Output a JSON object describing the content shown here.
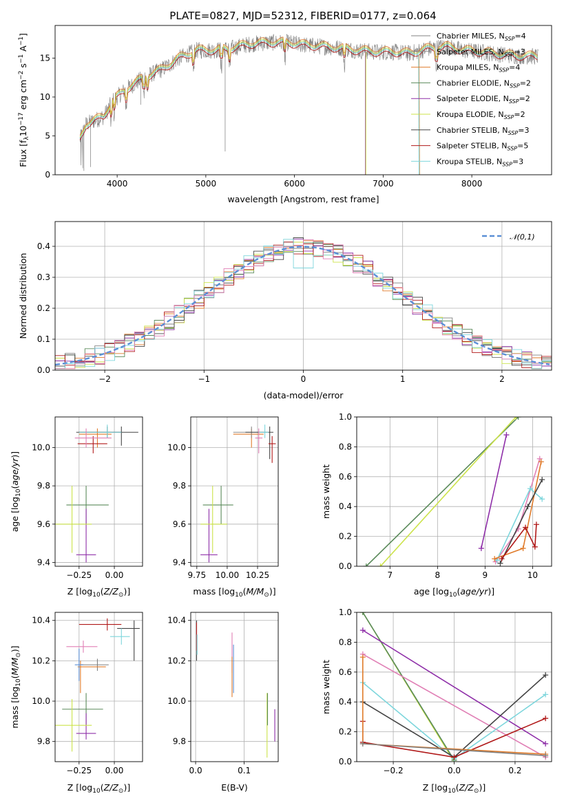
{
  "title": "PLATE=0827, MJD=52312, FIBERID=0177, z=0.064",
  "colors": {
    "Chabrier MILES": "#808080",
    "Salpeter MILES": "#8c8c8c",
    "Kroupa MILES": "#e07b2a",
    "Chabrier ELODIE": "#5a8a5a",
    "Salpeter ELODIE": "#8e2ea8",
    "Kroupa ELODIE": "#cce34a",
    "Chabrier STELIB": "#444444",
    "Salpeter STELIB": "#b01818",
    "Kroupa STELIB": "#7dd6dc",
    "Pink": "#e07fb5",
    "Normal": "#5b8fd6"
  },
  "chart_data": [
    {
      "id": "spectrum",
      "type": "line",
      "xlabel": "wavelength [Angstrom, rest frame]",
      "ylabel": "Flux [f_λ 10^-17 erg cm^-2 s^-1 A^-1]",
      "xlim": [
        3300,
        8900
      ],
      "ylim": [
        0,
        19.2
      ],
      "xticks": [
        4000,
        5000,
        6000,
        7000,
        8000
      ],
      "yticks": [
        0,
        5,
        10,
        15
      ],
      "grid": false,
      "legend_position": "top-right",
      "legend": [
        {
          "name": "Chabrier MILES",
          "nssp": "4"
        },
        {
          "name": "Salpeter MILES",
          "nssp": "3"
        },
        {
          "name": "Kroupa MILES",
          "nssp": "4"
        },
        {
          "name": "Chabrier ELODIE",
          "nssp": "2"
        },
        {
          "name": "Salpeter ELODIE",
          "nssp": "2"
        },
        {
          "name": "Kroupa ELODIE",
          "nssp": "2"
        },
        {
          "name": "Chabrier STELIB",
          "nssp": "3"
        },
        {
          "name": "Salpeter STELIB",
          "nssp": "5"
        },
        {
          "name": "Kroupa STELIB",
          "nssp": "3"
        }
      ],
      "continuum": [
        [
          3580,
          4.5
        ],
        [
          3650,
          6.5
        ],
        [
          3750,
          7
        ],
        [
          3850,
          7.5
        ],
        [
          3950,
          9.5
        ],
        [
          4100,
          11
        ],
        [
          4300,
          12.5
        ],
        [
          4500,
          13.5
        ],
        [
          4700,
          15
        ],
        [
          4900,
          16
        ],
        [
          5100,
          16
        ],
        [
          5300,
          16.3
        ],
        [
          5500,
          16.8
        ],
        [
          5700,
          17
        ],
        [
          5900,
          17
        ],
        [
          6100,
          16.7
        ],
        [
          6300,
          16.5
        ],
        [
          6500,
          16.3
        ],
        [
          6700,
          16
        ],
        [
          6900,
          15.8
        ],
        [
          7100,
          15.8
        ],
        [
          7300,
          15.6
        ],
        [
          7500,
          16.2
        ],
        [
          7700,
          16.5
        ],
        [
          7900,
          16
        ],
        [
          8100,
          15.8
        ],
        [
          8300,
          15.5
        ],
        [
          8500,
          15.3
        ],
        [
          8750,
          15.2
        ]
      ],
      "model_segments": [
        {
          "series": "Salpeter ELODIE",
          "x": [
            6800,
            6800
          ],
          "y": [
            15.8,
            0
          ]
        },
        {
          "series": "Kroupa ELODIE",
          "x": [
            6805,
            6805
          ],
          "y": [
            15.8,
            0
          ]
        },
        {
          "series": "Kroupa MILES",
          "x": [
            7405,
            7410
          ],
          "y": [
            15.5,
            0
          ]
        },
        {
          "series": "Kroupa STELIB",
          "x": [
            7400,
            7405
          ],
          "y": [
            15.5,
            0
          ]
        }
      ]
    },
    {
      "id": "residuals",
      "type": "histogram",
      "xlabel": "(data-model)/error",
      "ylabel": "Normed distribution",
      "xlim": [
        -2.5,
        2.5
      ],
      "ylim": [
        0,
        0.48
      ],
      "xticks": [
        -2,
        -1,
        0,
        1,
        2
      ],
      "yticks": [
        0.0,
        0.1,
        0.2,
        0.3,
        0.4
      ],
      "grid": true,
      "legend_position": "top-right",
      "reference": {
        "name": "𝒩(0,1)",
        "mean": 0,
        "sigma": 1
      }
    },
    {
      "id": "age-vs-Z",
      "type": "errorbar",
      "xlabel": "Z [log10(Z/Z☉)]",
      "ylabel": "age [log10(age/yr)]",
      "xlim": [
        -0.42,
        0.2
      ],
      "ylim": [
        9.38,
        10.16
      ],
      "xticks": [
        -0.25,
        0.0
      ],
      "yticks": [
        9.4,
        9.6,
        9.8,
        10.0
      ],
      "grid": true,
      "points": [
        {
          "series": "Chabrier MILES",
          "x": -0.05,
          "xerr": [
            0.2,
            0.1
          ],
          "y": 10.08,
          "yerr": [
            0.03,
            0.03
          ]
        },
        {
          "series": "Salpeter MILES",
          "x": -0.05,
          "xerr": [
            0.2,
            0.1
          ],
          "y": 10.08,
          "yerr": [
            0.03,
            0.03
          ]
        },
        {
          "series": "Kroupa MILES",
          "x": -0.12,
          "xerr": [
            0.13,
            0.1
          ],
          "y": 10.07,
          "yerr": [
            0.07,
            0.03
          ]
        },
        {
          "series": "Chabrier ELODIE",
          "x": -0.2,
          "xerr": [
            0.14,
            0.16
          ],
          "y": 9.7,
          "yerr": [
            0.1,
            0.1
          ]
        },
        {
          "series": "Salpeter ELODIE",
          "x": -0.2,
          "xerr": [
            0.07,
            0.07
          ],
          "y": 9.44,
          "yerr": [
            0.04,
            0.24
          ]
        },
        {
          "series": "Kroupa ELODIE",
          "x": -0.3,
          "xerr": [
            0.12,
            0.14
          ],
          "y": 9.6,
          "yerr": [
            0.15,
            0.2
          ]
        },
        {
          "series": "Chabrier STELIB",
          "x": 0.05,
          "xerr": [
            0.32,
            0.12
          ],
          "y": 10.08,
          "yerr": [
            0.07,
            0.03
          ]
        },
        {
          "series": "Salpeter STELIB",
          "x": -0.15,
          "xerr": [
            0.11,
            0.1
          ],
          "y": 10.02,
          "yerr": [
            0.05,
            0.04
          ]
        },
        {
          "series": "Kroupa STELIB",
          "x": -0.05,
          "xerr": [
            0.2,
            0.1
          ],
          "y": 10.08,
          "yerr": [
            0.03,
            0.04
          ]
        },
        {
          "series": "Pink",
          "x": -0.2,
          "xerr": [
            0.08,
            0.18
          ],
          "y": 10.05,
          "yerr": [
            0.05,
            0.05
          ]
        }
      ]
    },
    {
      "id": "age-vs-mass",
      "type": "errorbar",
      "xlabel": "mass [log10(M/M☉)]",
      "ylabel": "",
      "xlim": [
        9.7,
        10.42
      ],
      "ylim": [
        9.38,
        10.16
      ],
      "xticks": [
        9.75,
        10.0,
        10.25
      ],
      "yticks": [
        9.4,
        9.6,
        9.8,
        10.0
      ],
      "grid": true,
      "points": [
        {
          "series": "Kroupa MILES",
          "x": 10.2,
          "xerr": [
            0.15,
            0.1
          ],
          "y": 10.07,
          "yerr": [
            0.07,
            0.03
          ]
        },
        {
          "series": "Salpeter MILES",
          "x": 10.2,
          "xerr": [
            0.15,
            0.12
          ],
          "y": 10.08,
          "yerr": [
            0.03,
            0.03
          ]
        },
        {
          "series": "Chabrier ELODIE",
          "x": 9.95,
          "xerr": [
            0.15,
            0.1
          ],
          "y": 9.7,
          "yerr": [
            0.1,
            0.1
          ]
        },
        {
          "series": "Salpeter ELODIE",
          "x": 9.85,
          "xerr": [
            0.07,
            0.07
          ],
          "y": 9.44,
          "yerr": [
            0.04,
            0.24
          ]
        },
        {
          "series": "Kroupa ELODIE",
          "x": 9.88,
          "xerr": [
            0.1,
            0.12
          ],
          "y": 9.6,
          "yerr": [
            0.15,
            0.2
          ]
        },
        {
          "series": "Chabrier STELIB",
          "x": 10.35,
          "xerr": [
            0.2,
            0.03
          ],
          "y": 10.08,
          "yerr": [
            0.14,
            0.03
          ]
        },
        {
          "series": "Salpeter STELIB",
          "x": 10.37,
          "xerr": [
            0.03,
            0.03
          ],
          "y": 10.02,
          "yerr": [
            0.1,
            0.04
          ]
        },
        {
          "series": "Kroupa STELIB",
          "x": 10.31,
          "xerr": [
            0.05,
            0.03
          ],
          "y": 10.08,
          "yerr": [
            0.03,
            0.04
          ]
        },
        {
          "series": "Pink",
          "x": 10.26,
          "xerr": [
            0.03,
            0.03
          ],
          "y": 10.05,
          "yerr": [
            0.08,
            0.05
          ]
        }
      ]
    },
    {
      "id": "weight-vs-age",
      "type": "line",
      "xlabel": "age [log10(age/yr)]",
      "ylabel": "mass weight",
      "xlim": [
        6.3,
        10.4
      ],
      "ylim": [
        0,
        1.0
      ],
      "xticks": [
        7,
        8,
        9,
        10
      ],
      "yticks": [
        0.0,
        0.2,
        0.4,
        0.6,
        0.8,
        1.0
      ],
      "grid": true,
      "series": [
        {
          "name": "Chabrier ELODIE",
          "x": [
            6.5,
            9.7
          ],
          "y": [
            0.0,
            1.0
          ]
        },
        {
          "name": "Kroupa ELODIE",
          "x": [
            6.8,
            9.65
          ],
          "y": [
            0.0,
            1.0
          ]
        },
        {
          "name": "Salpeter ELODIE",
          "x": [
            8.92,
            9.45
          ],
          "y": [
            0.12,
            0.88
          ]
        },
        {
          "name": "Pink",
          "x": [
            9.22,
            9.7,
            10.15
          ],
          "y": [
            0.03,
            0.25,
            0.72
          ]
        },
        {
          "name": "Kroupa STELIB",
          "x": [
            9.25,
            9.95,
            10.2
          ],
          "y": [
            0.04,
            0.52,
            0.45
          ]
        },
        {
          "name": "Kroupa MILES",
          "x": [
            9.2,
            9.8,
            10.18
          ],
          "y": [
            0.05,
            0.12,
            0.7
          ]
        },
        {
          "name": "Chabrier STELIB",
          "x": [
            9.32,
            9.9,
            10.2
          ],
          "y": [
            0.02,
            0.4,
            0.58
          ]
        },
        {
          "name": "Salpeter STELIB",
          "x": [
            9.35,
            9.85,
            10.05,
            10.08
          ],
          "y": [
            0.05,
            0.26,
            0.13,
            0.28
          ]
        }
      ]
    },
    {
      "id": "mass-vs-Z",
      "type": "errorbar",
      "xlabel": "Z [log10(Z/Z☉)]",
      "ylabel": "mass [log10(M/M☉)]",
      "xlim": [
        -0.42,
        0.2
      ],
      "ylim": [
        9.7,
        10.44
      ],
      "xticks": [
        -0.25,
        0.0
      ],
      "yticks": [
        9.8,
        10.0,
        10.2,
        10.4
      ],
      "grid": true,
      "points": [
        {
          "series": "Chabrier MILES",
          "x": -0.12,
          "xerr": [
            0.12,
            0.08
          ],
          "y": 10.18,
          "yerr": [
            0.03,
            0.03
          ]
        },
        {
          "series": "Kroupa MILES",
          "x": -0.24,
          "xerr": [
            0.02,
            0.18
          ],
          "y": 10.17,
          "yerr": [
            0.13,
            0.03
          ]
        },
        {
          "series": "Chabrier ELODIE",
          "x": -0.2,
          "xerr": [
            0.17,
            0.12
          ],
          "y": 9.96,
          "yerr": [
            0.08,
            0.08
          ]
        },
        {
          "series": "Salpeter ELODIE",
          "x": -0.2,
          "xerr": [
            0.07,
            0.07
          ],
          "y": 9.84,
          "yerr": [
            0.03,
            0.1
          ]
        },
        {
          "series": "Kroupa ELODIE",
          "x": -0.3,
          "xerr": [
            0.12,
            0.14
          ],
          "y": 9.88,
          "yerr": [
            0.13,
            0.13
          ]
        },
        {
          "series": "Chabrier STELIB",
          "x": 0.14,
          "xerr": [
            0.12,
            0.04
          ],
          "y": 10.36,
          "yerr": [
            0.16,
            0.04
          ]
        },
        {
          "series": "Salpeter STELIB",
          "x": -0.05,
          "xerr": [
            0.2,
            0.1
          ],
          "y": 10.38,
          "yerr": [
            0.03,
            0.03
          ]
        },
        {
          "series": "Kroupa STELIB",
          "x": 0.05,
          "xerr": [
            0.08,
            0.06
          ],
          "y": 10.32,
          "yerr": [
            0.04,
            0.04
          ]
        },
        {
          "series": "Pink",
          "x": -0.22,
          "xerr": [
            0.12,
            0.1
          ],
          "y": 10.27,
          "yerr": [
            0.03,
            0.03
          ]
        },
        {
          "series": "Normal",
          "x": -0.25,
          "xerr": [
            0.03,
            0.03
          ],
          "y": 10.18,
          "yerr": [
            0.08,
            0.08
          ]
        }
      ]
    },
    {
      "id": "mass-vs-ebv",
      "type": "errorbar",
      "xlabel": "E(B-V)",
      "ylabel": "",
      "xlim": [
        -0.01,
        0.17
      ],
      "ylim": [
        9.7,
        10.44
      ],
      "xticks": [
        0.0,
        0.1
      ],
      "yticks": [
        9.8,
        10.0,
        10.2,
        10.4
      ],
      "grid": true,
      "points": [
        {
          "series": "Chabrier STELIB",
          "x": 0.002,
          "xerr": [
            0.0,
            0.0
          ],
          "y": 10.3,
          "yerr": [
            0.1,
            0.1
          ]
        },
        {
          "series": "Salpeter STELIB",
          "x": 0.002,
          "xerr": [
            0.0,
            0.0
          ],
          "y": 10.32,
          "yerr": [
            0.07,
            0.07
          ]
        },
        {
          "series": "Kroupa STELIB",
          "x": 0.003,
          "xerr": [
            0.0,
            0.0
          ],
          "y": 10.28,
          "yerr": [
            0.05,
            0.05
          ]
        },
        {
          "series": "Pink",
          "x": 0.075,
          "xerr": [
            0.0,
            0.0
          ],
          "y": 10.24,
          "yerr": [
            0.1,
            0.1
          ]
        },
        {
          "series": "Normal",
          "x": 0.078,
          "xerr": [
            0.0,
            0.0
          ],
          "y": 10.16,
          "yerr": [
            0.12,
            0.12
          ]
        },
        {
          "series": "Kroupa MILES",
          "x": 0.075,
          "xerr": [
            0.0,
            0.0
          ],
          "y": 10.12,
          "yerr": [
            0.1,
            0.1
          ]
        },
        {
          "series": "Kroupa ELODIE",
          "x": 0.147,
          "xerr": [
            0.0,
            0.0
          ],
          "y": 9.88,
          "yerr": [
            0.16,
            0.16
          ]
        },
        {
          "series": "Chabrier ELODIE",
          "x": 0.148,
          "xerr": [
            0.0,
            0.0
          ],
          "y": 9.96,
          "yerr": [
            0.08,
            0.08
          ]
        },
        {
          "series": "Salpeter ELODIE",
          "x": 0.163,
          "xerr": [
            0.0,
            0.0
          ],
          "y": 9.88,
          "yerr": [
            0.08,
            0.08
          ]
        }
      ]
    },
    {
      "id": "weight-vs-Z",
      "type": "line",
      "xlabel": "Z [log10(Z/Z☉)]",
      "ylabel": "mass weight",
      "xlim": [
        -0.32,
        0.32
      ],
      "ylim": [
        0,
        1.0
      ],
      "xticks": [
        -0.2,
        0.0,
        0.2
      ],
      "yticks": [
        0.0,
        0.2,
        0.4,
        0.6,
        0.8,
        1.0
      ],
      "grid": true,
      "series": [
        {
          "name": "Kroupa ELODIE",
          "x": [
            -0.3,
            0.0
          ],
          "y": [
            1.0,
            0.0
          ]
        },
        {
          "name": "Chabrier ELODIE",
          "x": [
            -0.3,
            0.0
          ],
          "y": [
            1.0,
            0.01
          ]
        },
        {
          "name": "Salpeter ELODIE",
          "x": [
            -0.3,
            0.3
          ],
          "y": [
            0.88,
            0.12
          ]
        },
        {
          "name": "Pink",
          "x": [
            -0.3,
            0.3
          ],
          "y": [
            0.72,
            0.03
          ]
        },
        {
          "name": "Kroupa STELIB",
          "x": [
            -0.3,
            0.0,
            0.3
          ],
          "y": [
            0.53,
            0.02,
            0.45
          ]
        },
        {
          "name": "Chabrier STELIB",
          "x": [
            -0.3,
            0.0,
            0.3
          ],
          "y": [
            0.4,
            0.03,
            0.58
          ]
        },
        {
          "name": "Salpeter STELIB",
          "x": [
            -0.3,
            -0.3,
            0.0,
            0.3
          ],
          "y": [
            0.27,
            0.13,
            0.03,
            0.29
          ]
        },
        {
          "name": "Kroupa MILES",
          "x": [
            -0.3,
            -0.3,
            0.3
          ],
          "y": [
            0.7,
            0.12,
            0.05
          ]
        },
        {
          "name": "Chabrier MILES",
          "x": [
            -0.3,
            0.3
          ],
          "y": [
            0.12,
            0.04
          ]
        }
      ]
    }
  ]
}
